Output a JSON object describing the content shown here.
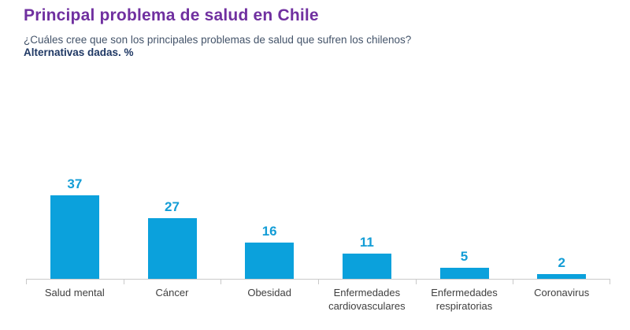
{
  "header": {
    "title": "Principal problema de salud en Chile",
    "subtitle": "¿Cuáles cree que son los principales problemas de salud que sufren los chilenos?",
    "note": "Alternativas dadas. %"
  },
  "colors": {
    "bar_fill": "#0ba1dc",
    "value_label": "#139dd6",
    "title": "#7030a0",
    "subtitle": "#44546a",
    "note": "#1f3864",
    "axis_line": "#c9c9c9",
    "category_label": "#404040"
  },
  "chart_data": {
    "type": "bar",
    "title": "Principal problema de salud en Chile",
    "subtitle": "¿Cuáles cree que son los principales problemas de salud que sufren los chilenos?",
    "units_note": "Alternativas dadas. %",
    "categories": [
      "Salud mental",
      "Cáncer",
      "Obesidad",
      "Enfermedades cardiovasculares",
      "Enfermedades respiratorias",
      "Coronavirus"
    ],
    "values": [
      37,
      27,
      16,
      11,
      5,
      2
    ],
    "xlabel": "",
    "ylabel": "",
    "ylim": [
      0,
      40
    ],
    "grid": false,
    "legend": false,
    "data_labels": true,
    "axis_ticks": "category-boundaries"
  }
}
